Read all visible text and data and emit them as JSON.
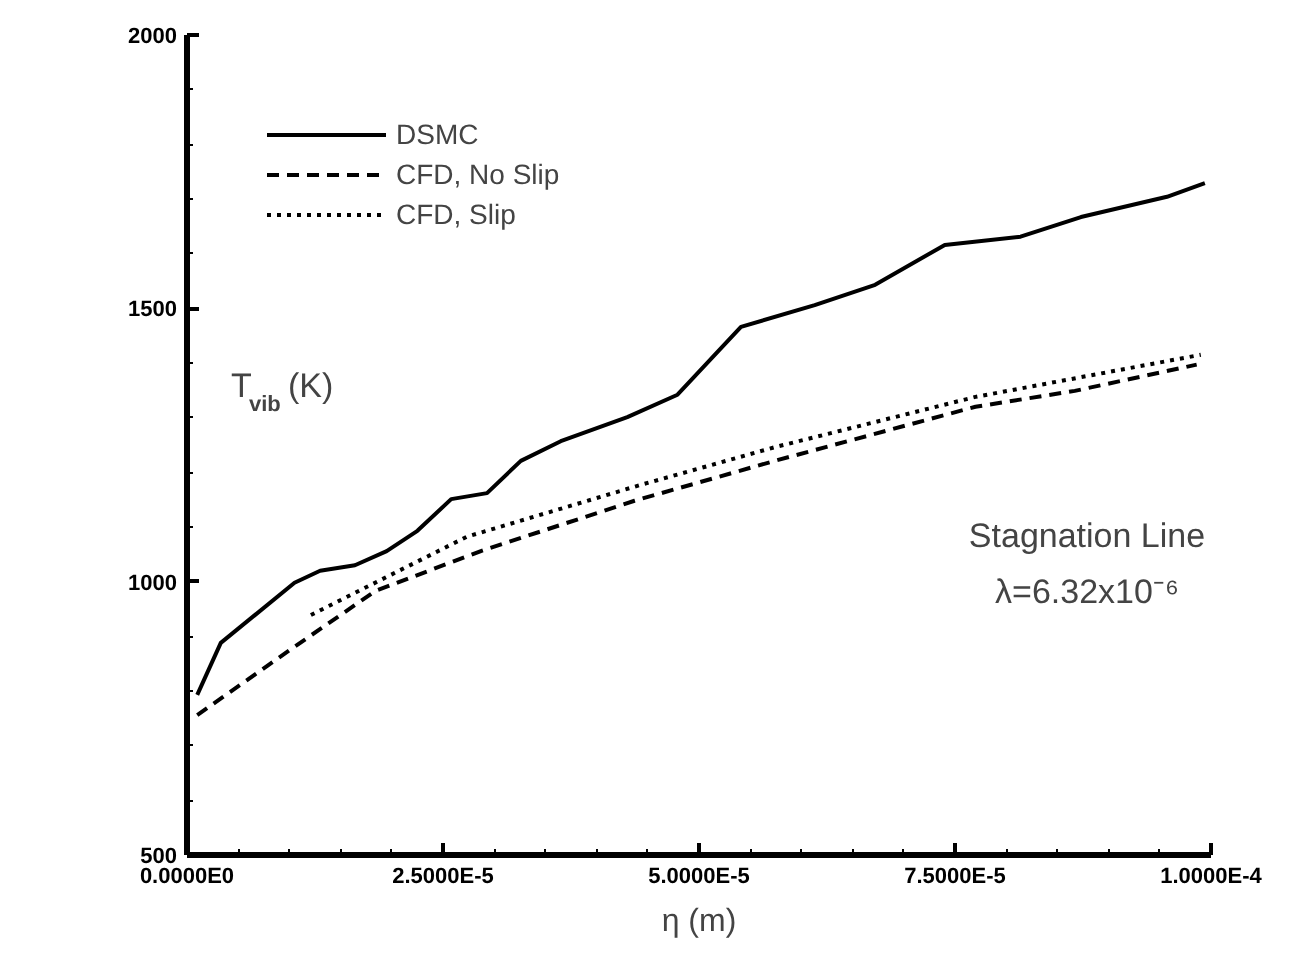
{
  "chart_data": {
    "type": "line",
    "xlabel": "η (m)",
    "ylabel": "T$_{vib}$ (K)",
    "xlim": [
      0,
      0.0001
    ],
    "ylim": [
      500,
      2000
    ],
    "xticks": [
      {
        "value": 0,
        "label": "0.0000E0"
      },
      {
        "value": 2.5e-05,
        "label": "2.5000E-5"
      },
      {
        "value": 5e-05,
        "label": "5.0000E-5"
      },
      {
        "value": 7.5e-05,
        "label": "7.5000E-5"
      },
      {
        "value": 0.0001,
        "label": "1.0000E-4"
      }
    ],
    "yticks": [
      500,
      1000,
      1500,
      2000
    ],
    "grid": false,
    "legend": "top left",
    "annotations": [
      "Stagnation Line",
      "λ=6.32x10⁻⁶"
    ],
    "series": [
      {
        "name": "DSMC",
        "color": "#000000",
        "line_style": "solid",
        "x": [
          1e-06,
          3.3e-06,
          1.05e-05,
          1.3e-05,
          1.64e-05,
          1.95e-05,
          2.25e-05,
          2.58e-05,
          2.93e-05,
          3.26e-05,
          3.65e-05,
          4.3e-05,
          4.79e-05,
          5.41e-05,
          6.13e-05,
          6.72e-05,
          7.4e-05,
          8.14e-05,
          8.73e-05,
          9.57e-05,
          9.94e-05
        ],
        "values": [
          793,
          888,
          998,
          1020,
          1030,
          1056,
          1093,
          1151,
          1162,
          1221,
          1257,
          1301,
          1342,
          1466,
          1506,
          1543,
          1616,
          1631,
          1667,
          1704,
          1729
        ]
      },
      {
        "name": "CFD, No Slip",
        "color": "#000000",
        "line_style": "dashed",
        "x": [
          1e-06,
          1.05e-05,
          1.84e-05,
          2.87e-05,
          4.37e-05,
          5.74e-05,
          7.7e-05,
          8.67e-05,
          9.86e-05
        ],
        "values": [
          756,
          881,
          983,
          1056,
          1148,
          1221,
          1320,
          1349,
          1397
        ]
      },
      {
        "name": "CFD, Slip",
        "color": "#000000",
        "line_style": "dotted",
        "x": [
          1.21e-05,
          2.73e-05,
          4.43e-05,
          5.74e-05,
          7.7e-05,
          9.9e-05
        ],
        "values": [
          939,
          1082,
          1177,
          1246,
          1338,
          1415
        ]
      }
    ]
  }
}
